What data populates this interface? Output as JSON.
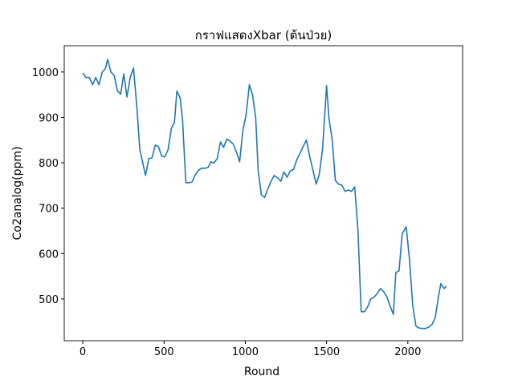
{
  "chart_data": {
    "type": "line",
    "title": "กราฟแสดงXbar  (ต้นป่วย)",
    "xlabel": "Round",
    "ylabel": "Co2analog(ppm)",
    "x": [
      0,
      20,
      40,
      60,
      80,
      100,
      120,
      139,
      153,
      173,
      193,
      213,
      233,
      252,
      272,
      292,
      312,
      332,
      351,
      371,
      386,
      406,
      426,
      446,
      465,
      485,
      505,
      525,
      545,
      564,
      579,
      599,
      614,
      634,
      653,
      673,
      693,
      713,
      733,
      752,
      772,
      787,
      807,
      827,
      847,
      866,
      886,
      906,
      926,
      946,
      965,
      985,
      1005,
      1025,
      1045,
      1064,
      1079,
      1099,
      1119,
      1139,
      1158,
      1178,
      1198,
      1218,
      1238,
      1257,
      1277,
      1297,
      1317,
      1337,
      1356,
      1376,
      1396,
      1416,
      1436,
      1455,
      1475,
      1500,
      1515,
      1535,
      1554,
      1574,
      1594,
      1614,
      1634,
      1653,
      1673,
      1693,
      1713,
      1733,
      1752,
      1772,
      1792,
      1812,
      1832,
      1851,
      1871,
      1891,
      1911,
      1926,
      1946,
      1965,
      1990,
      2010,
      2030,
      2050,
      2069,
      2089,
      2109,
      2129,
      2149,
      2168,
      2188,
      2203,
      2223,
      2238
    ],
    "series": [
      {
        "name": "Xbar",
        "color": "#1f77b4",
        "values": [
          998,
          988,
          988,
          972,
          988,
          972,
          1000,
          1007,
          1028,
          1000,
          993,
          959,
          951,
          996,
          945,
          988,
          1009,
          926,
          829,
          797,
          772,
          809,
          811,
          839,
          836,
          815,
          813,
          829,
          876,
          889,
          958,
          943,
          894,
          756,
          756,
          758,
          774,
          784,
          788,
          788,
          790,
          802,
          800,
          809,
          846,
          834,
          852,
          848,
          841,
          823,
          802,
          871,
          906,
          972,
          949,
          899,
          784,
          729,
          724,
          743,
          759,
          772,
          767,
          759,
          780,
          768,
          782,
          786,
          807,
          821,
          836,
          850,
          814,
          784,
          753,
          774,
          829,
          970,
          897,
          850,
          761,
          753,
          751,
          737,
          740,
          737,
          747,
          652,
          472,
          472,
          482,
          500,
          504,
          512,
          523,
          516,
          505,
          484,
          466,
          558,
          562,
          643,
          659,
          588,
          486,
          440,
          436,
          435,
          435,
          438,
          444,
          458,
          504,
          534,
          523,
          528
        ]
      }
    ],
    "xlim": [
      -114,
      2337
    ],
    "ylim": [
      408,
      1058
    ],
    "xticks": [
      0,
      500,
      1000,
      1500,
      2000
    ],
    "yticks": [
      500,
      600,
      700,
      800,
      900,
      1000
    ]
  }
}
